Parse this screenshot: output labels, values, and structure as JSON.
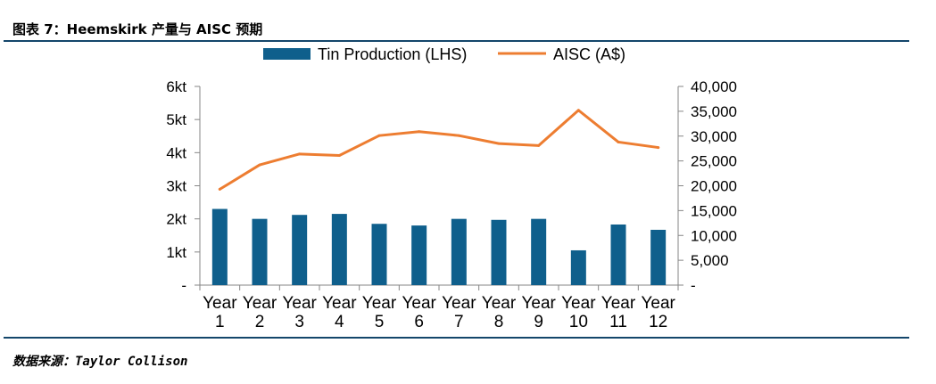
{
  "figure": {
    "title": "图表 7：Heemskirk 产量与 AISC 预期",
    "source": "数据来源：Taylor Collison"
  },
  "chart_data": {
    "type": "bar-line-combo",
    "title": "",
    "categories": [
      "Year 1",
      "Year 2",
      "Year 3",
      "Year 4",
      "Year 5",
      "Year 6",
      "Year 7",
      "Year 8",
      "Year 9",
      "Year 10",
      "Year 11",
      "Year 12"
    ],
    "category_lines": [
      [
        "Year",
        "1"
      ],
      [
        "Year",
        "2"
      ],
      [
        "Year",
        "3"
      ],
      [
        "Year",
        "4"
      ],
      [
        "Year",
        "5"
      ],
      [
        "Year",
        "6"
      ],
      [
        "Year",
        "7"
      ],
      [
        "Year",
        "8"
      ],
      [
        "Year",
        "9"
      ],
      [
        "Year",
        "10"
      ],
      [
        "Year",
        "11"
      ],
      [
        "Year",
        "12"
      ]
    ],
    "series": [
      {
        "name": "Tin Production (LHS)",
        "type": "bar",
        "axis": "left",
        "color": "#0f5f8c",
        "unit": "kt",
        "values": [
          2.3,
          2.0,
          2.12,
          2.15,
          1.85,
          1.8,
          2.0,
          1.97,
          2.0,
          1.05,
          1.83,
          1.67
        ]
      },
      {
        "name": "AISC (A$)",
        "type": "line",
        "axis": "right",
        "color": "#ed7d31",
        "values": [
          19300,
          24200,
          26400,
          26100,
          30100,
          30900,
          30100,
          28500,
          28100,
          35200,
          28800,
          27700
        ]
      }
    ],
    "y_left": {
      "min": 0,
      "max": 6,
      "ticks": [
        0,
        1,
        2,
        3,
        4,
        5,
        6
      ],
      "tick_labels": [
        "-",
        "1kt",
        "2kt",
        "3kt",
        "4kt",
        "5kt",
        "6kt"
      ]
    },
    "y_right": {
      "min": 0,
      "max": 40000,
      "ticks": [
        0,
        5000,
        10000,
        15000,
        20000,
        25000,
        30000,
        35000,
        40000
      ],
      "tick_labels": [
        "-",
        "5,000",
        "10,000",
        "15,000",
        "20,000",
        "25,000",
        "30,000",
        "35,000",
        "40,000"
      ]
    },
    "legend": {
      "position": "top-center",
      "entries": [
        "Tin Production (LHS)",
        "AISC (A$)"
      ]
    },
    "grid": false
  }
}
